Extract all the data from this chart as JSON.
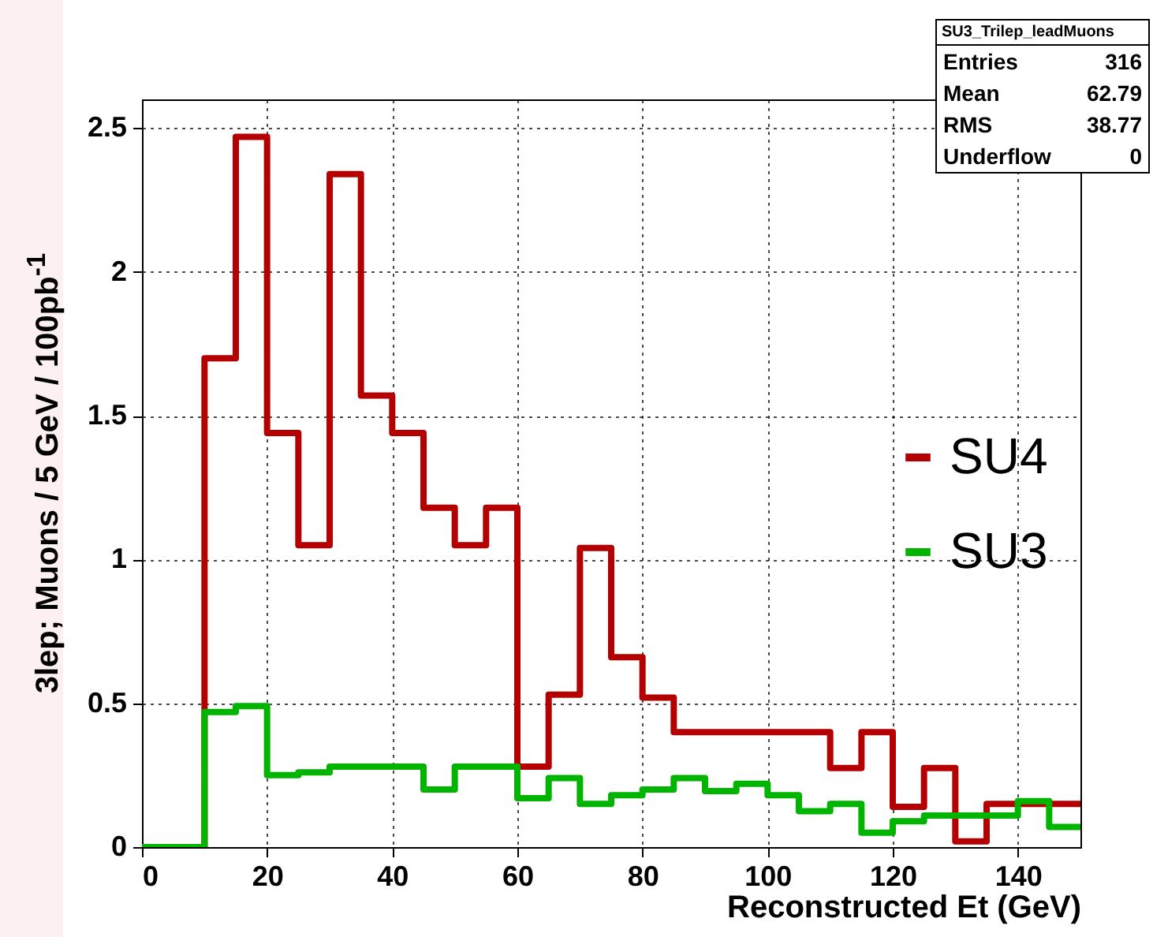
{
  "chart_data": {
    "type": "histogram",
    "xlabel": "Reconstructed Et (GeV)",
    "ylabel": "3lep; Muons / 5 GeV / 100pb$^{-1}$",
    "bins": [
      0,
      5,
      10,
      15,
      20,
      25,
      30,
      35,
      40,
      45,
      50,
      55,
      60,
      65,
      70,
      75,
      80,
      85,
      90,
      95,
      100,
      105,
      110,
      115,
      120,
      125,
      130,
      135,
      140,
      145,
      150
    ],
    "series": [
      {
        "name": "SU4",
        "color": "#b40000",
        "values": [
          0,
          0,
          1.7,
          2.47,
          1.44,
          1.05,
          2.34,
          1.57,
          1.44,
          1.18,
          1.05,
          1.18,
          0.28,
          0.53,
          1.04,
          0.66,
          0.52,
          0.4,
          0.4,
          0.4,
          0.4,
          0.4,
          0.275,
          0.4,
          0.14,
          0.275,
          0.02,
          0.15,
          0.15,
          0.15
        ]
      },
      {
        "name": "SU3",
        "color": "#00b400",
        "values": [
          0,
          0,
          0.47,
          0.49,
          0.25,
          0.26,
          0.28,
          0.28,
          0.28,
          0.2,
          0.28,
          0.28,
          0.17,
          0.24,
          0.15,
          0.18,
          0.2,
          0.24,
          0.195,
          0.22,
          0.18,
          0.125,
          0.15,
          0.05,
          0.09,
          0.11,
          0.11,
          0.11,
          0.16,
          0.07
        ]
      }
    ],
    "xlim": [
      0,
      150
    ],
    "xticks": [
      0,
      20,
      40,
      60,
      80,
      100,
      120,
      140
    ],
    "ylim": [
      0,
      2.6
    ],
    "yticks": [
      0,
      0.5,
      1,
      1.5,
      2,
      2.5
    ],
    "grid": true,
    "legend": "right",
    "annotations": [
      "SU3_Trilep_leadMuons",
      "Entries 316",
      "Mean 62.79",
      "RMS 38.77",
      "Underflow 0"
    ]
  }
}
